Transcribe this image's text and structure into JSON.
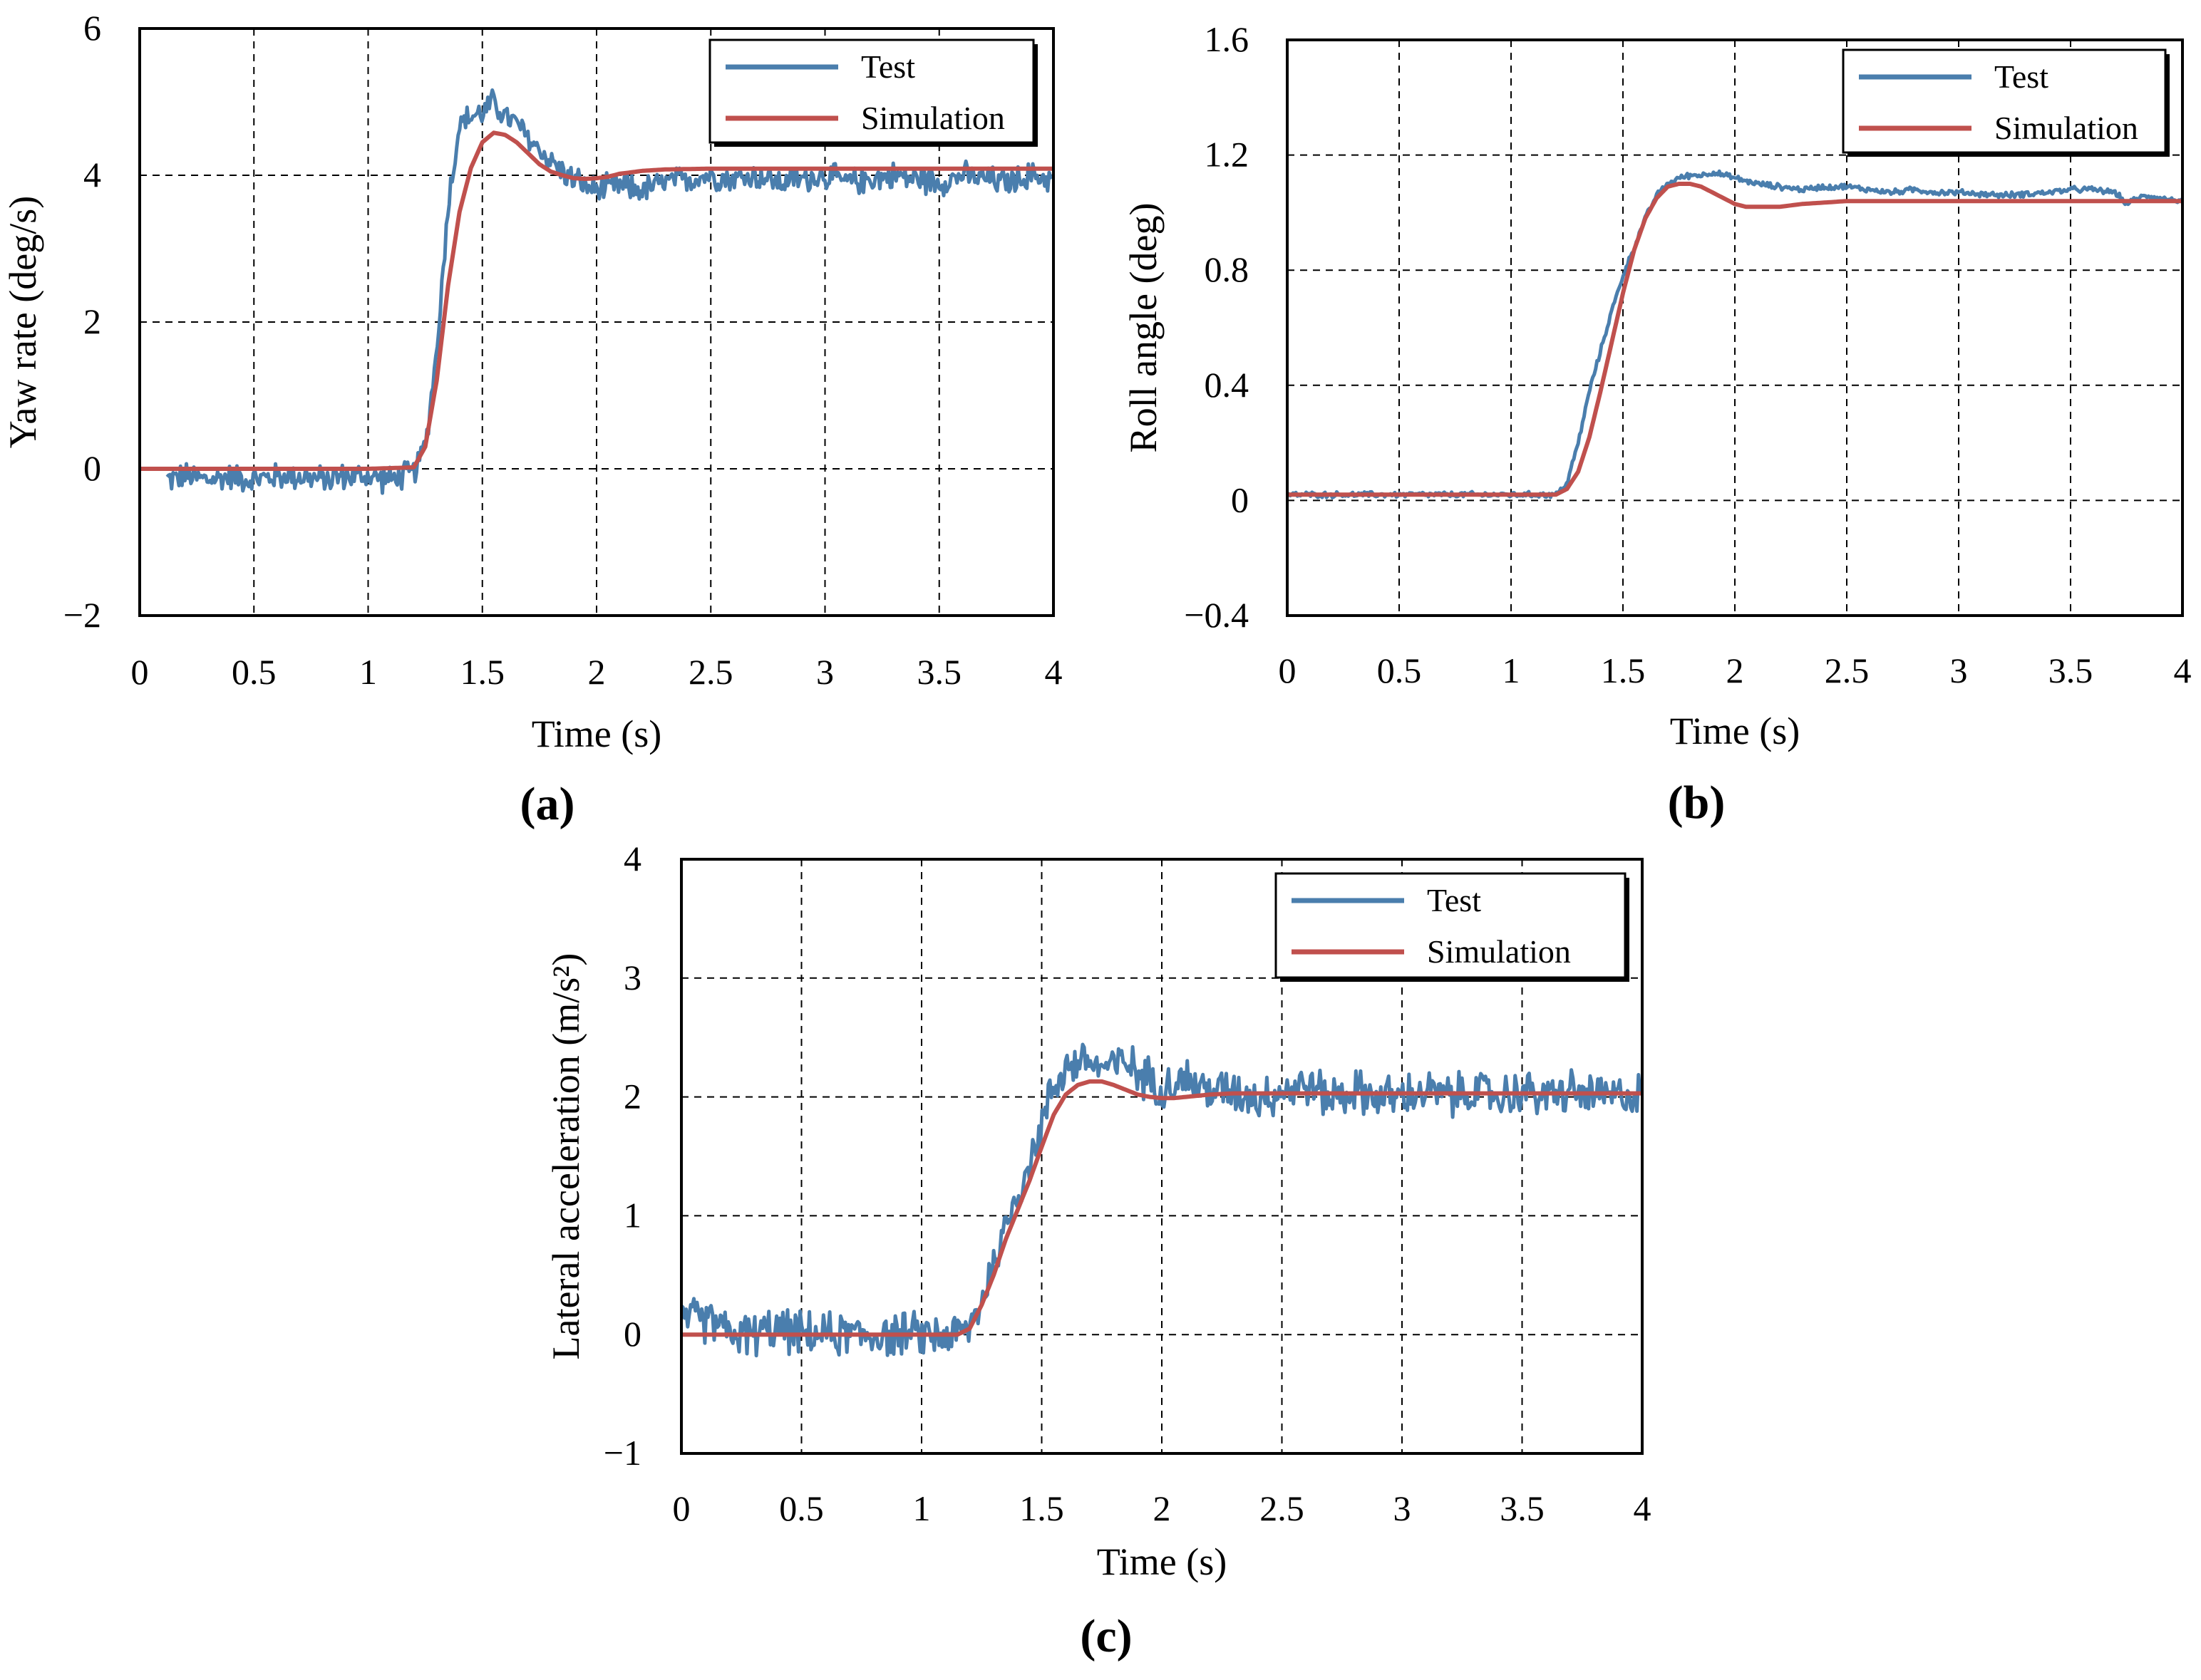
{
  "chart_data": [
    {
      "type": "line",
      "panel_label": "(a)",
      "xlabel": "Time (s)",
      "ylabel": "Yaw rate (deg/s)",
      "xlim": [
        0,
        4
      ],
      "ylim": [
        -2,
        6
      ],
      "xticks": [
        0,
        0.5,
        1,
        1.5,
        2,
        2.5,
        3,
        3.5,
        4
      ],
      "xtick_labels": [
        "0",
        "0.5",
        "1",
        "1.5",
        "2",
        "2.5",
        "3",
        "3.5",
        "4"
      ],
      "yticks": [
        -2,
        0,
        2,
        4,
        6
      ],
      "ytick_labels": [
        "−2",
        "0",
        "2",
        "4",
        "6"
      ],
      "grid": true,
      "legend_position": "top-right",
      "series": [
        {
          "name": "Test",
          "color": "#4A7EAD",
          "x": [
            0.12,
            0.2,
            0.3,
            0.4,
            0.5,
            0.6,
            0.7,
            0.8,
            0.9,
            1.0,
            1.1,
            1.15,
            1.2,
            1.25,
            1.3,
            1.35,
            1.4,
            1.45,
            1.5,
            1.55,
            1.6,
            1.65,
            1.7,
            1.75,
            1.8,
            1.85,
            1.9,
            1.95,
            2.0,
            2.1,
            2.2,
            2.3,
            2.4,
            2.5,
            2.6,
            2.7,
            2.8,
            2.9,
            3.0,
            3.1,
            3.2,
            3.3,
            3.4,
            3.5,
            3.6,
            3.7,
            3.8,
            3.9,
            4.0
          ],
          "y": [
            -0.15,
            -0.1,
            -0.15,
            -0.1,
            -0.15,
            -0.1,
            -0.1,
            -0.15,
            -0.1,
            -0.1,
            -0.15,
            -0.1,
            -0.05,
            0.3,
            1.6,
            3.6,
            4.7,
            4.8,
            4.85,
            5.0,
            4.8,
            4.7,
            4.5,
            4.35,
            4.2,
            4.05,
            3.95,
            3.85,
            3.8,
            3.85,
            3.8,
            3.9,
            3.95,
            4.0,
            3.95,
            4.0,
            3.9,
            3.95,
            4.0,
            3.9,
            3.95,
            4.0,
            3.95,
            3.9,
            4.0,
            3.95,
            3.9,
            4.0,
            3.95
          ],
          "noise": 0.22
        },
        {
          "name": "Simulation",
          "color": "#C0504D",
          "x": [
            0,
            0.5,
            1.0,
            1.2,
            1.25,
            1.3,
            1.35,
            1.4,
            1.45,
            1.5,
            1.55,
            1.6,
            1.65,
            1.7,
            1.75,
            1.8,
            1.85,
            1.9,
            1.95,
            2.0,
            2.05,
            2.1,
            2.2,
            2.3,
            2.5,
            3.0,
            3.5,
            4.0
          ],
          "y": [
            0,
            0,
            0,
            0.02,
            0.3,
            1.2,
            2.5,
            3.5,
            4.1,
            4.45,
            4.58,
            4.55,
            4.45,
            4.3,
            4.15,
            4.05,
            4.0,
            3.96,
            3.95,
            3.96,
            3.98,
            4.02,
            4.06,
            4.08,
            4.09,
            4.09,
            4.09,
            4.09
          ]
        }
      ]
    },
    {
      "type": "line",
      "panel_label": "(b)",
      "xlabel": "Time (s)",
      "ylabel": "Roll angle (deg)",
      "xlim": [
        0,
        4
      ],
      "ylim": [
        -0.4,
        1.6
      ],
      "xticks": [
        0,
        0.5,
        1,
        1.5,
        2,
        2.5,
        3,
        3.5,
        4
      ],
      "xtick_labels": [
        "0",
        "0.5",
        "1",
        "1.5",
        "2",
        "2.5",
        "3",
        "3.5",
        "4"
      ],
      "yticks": [
        -0.4,
        0,
        0.4,
        0.8,
        1.2,
        1.6
      ],
      "ytick_labels": [
        "−0.4",
        "0",
        "0.4",
        "0.8",
        "1.2",
        "1.6"
      ],
      "grid": true,
      "legend_position": "top-right",
      "series": [
        {
          "name": "Test",
          "color": "#4A7EAD",
          "x": [
            0,
            0.5,
            1.0,
            1.2,
            1.25,
            1.3,
            1.35,
            1.4,
            1.45,
            1.5,
            1.55,
            1.6,
            1.65,
            1.7,
            1.75,
            1.8,
            1.85,
            1.9,
            2.0,
            2.1,
            2.2,
            2.3,
            2.4,
            2.5,
            2.6,
            2.7,
            2.8,
            2.9,
            3.0,
            3.2,
            3.4,
            3.5,
            3.6,
            3.7,
            3.75,
            3.8,
            3.85,
            3.9,
            4.0
          ],
          "y": [
            0.02,
            0.02,
            0.02,
            0.02,
            0.06,
            0.2,
            0.38,
            0.52,
            0.66,
            0.78,
            0.88,
            0.98,
            1.06,
            1.1,
            1.12,
            1.13,
            1.13,
            1.14,
            1.12,
            1.1,
            1.09,
            1.08,
            1.09,
            1.09,
            1.08,
            1.07,
            1.08,
            1.07,
            1.07,
            1.06,
            1.07,
            1.08,
            1.08,
            1.07,
            1.03,
            1.05,
            1.06,
            1.05,
            1.04
          ],
          "noise": 0.012
        },
        {
          "name": "Simulation",
          "color": "#C0504D",
          "x": [
            0,
            0.5,
            1.0,
            1.2,
            1.25,
            1.3,
            1.35,
            1.4,
            1.45,
            1.5,
            1.55,
            1.6,
            1.65,
            1.7,
            1.75,
            1.8,
            1.85,
            1.9,
            1.95,
            2.0,
            2.05,
            2.1,
            2.2,
            2.3,
            2.5,
            3.0,
            3.5,
            4.0
          ],
          "y": [
            0.02,
            0.02,
            0.02,
            0.02,
            0.04,
            0.1,
            0.22,
            0.38,
            0.55,
            0.72,
            0.87,
            0.98,
            1.05,
            1.09,
            1.1,
            1.1,
            1.09,
            1.07,
            1.05,
            1.03,
            1.02,
            1.02,
            1.02,
            1.03,
            1.04,
            1.04,
            1.04,
            1.04
          ]
        }
      ]
    },
    {
      "type": "line",
      "panel_label": "(c)",
      "xlabel": "Time (s)",
      "ylabel": "Lateral acceleration (m/s²)",
      "xlim": [
        0,
        4
      ],
      "ylim": [
        -1,
        4
      ],
      "xticks": [
        0,
        0.5,
        1,
        1.5,
        2,
        2.5,
        3,
        3.5,
        4
      ],
      "xtick_labels": [
        "0",
        "0.5",
        "1",
        "1.5",
        "2",
        "2.5",
        "3",
        "3.5",
        "4"
      ],
      "yticks": [
        -1,
        0,
        1,
        2,
        3,
        4
      ],
      "ytick_labels": [
        "−1",
        "0",
        "1",
        "2",
        "3",
        "4"
      ],
      "grid": true,
      "legend_position": "top-right",
      "series": [
        {
          "name": "Test",
          "color": "#4A7EAD",
          "x": [
            0,
            0.1,
            0.15,
            0.2,
            0.3,
            0.4,
            0.5,
            0.6,
            0.7,
            0.8,
            0.9,
            1.0,
            1.1,
            1.15,
            1.2,
            1.25,
            1.3,
            1.35,
            1.4,
            1.45,
            1.5,
            1.55,
            1.6,
            1.65,
            1.7,
            1.75,
            1.8,
            1.85,
            1.9,
            1.95,
            2.0,
            2.1,
            2.2,
            2.3,
            2.4,
            2.5,
            2.6,
            2.7,
            2.8,
            2.9,
            3.0,
            3.1,
            3.2,
            3.3,
            3.4,
            3.5,
            3.6,
            3.7,
            3.8,
            3.9,
            4.0
          ],
          "y": [
            0.12,
            0.12,
            0.1,
            0.0,
            0.0,
            0.05,
            0.0,
            0.0,
            0.0,
            0.0,
            0.0,
            0.0,
            0.0,
            0.0,
            0.05,
            0.3,
            0.6,
            0.9,
            1.2,
            1.45,
            1.75,
            2.1,
            2.25,
            2.3,
            2.3,
            2.25,
            2.25,
            2.3,
            2.2,
            2.15,
            2.1,
            2.15,
            2.05,
            2.05,
            2.0,
            2.05,
            2.1,
            2.0,
            2.05,
            2.0,
            2.0,
            2.05,
            2.0,
            2.05,
            2.0,
            2.05,
            2.0,
            2.05,
            2.0,
            2.0,
            2.05
          ],
          "noise": 0.22
        },
        {
          "name": "Simulation",
          "color": "#C0504D",
          "x": [
            0,
            0.5,
            1.0,
            1.15,
            1.2,
            1.25,
            1.3,
            1.35,
            1.4,
            1.45,
            1.5,
            1.55,
            1.6,
            1.65,
            1.7,
            1.75,
            1.8,
            1.85,
            1.9,
            1.95,
            2.0,
            2.05,
            2.1,
            2.2,
            2.3,
            2.5,
            3.0,
            3.5,
            4.0
          ],
          "y": [
            0,
            0,
            0,
            0,
            0.05,
            0.25,
            0.5,
            0.8,
            1.05,
            1.3,
            1.58,
            1.85,
            2.02,
            2.1,
            2.13,
            2.13,
            2.1,
            2.06,
            2.02,
            2.0,
            1.99,
            1.99,
            2.0,
            2.02,
            2.03,
            2.03,
            2.03,
            2.03,
            2.03
          ]
        }
      ]
    }
  ]
}
